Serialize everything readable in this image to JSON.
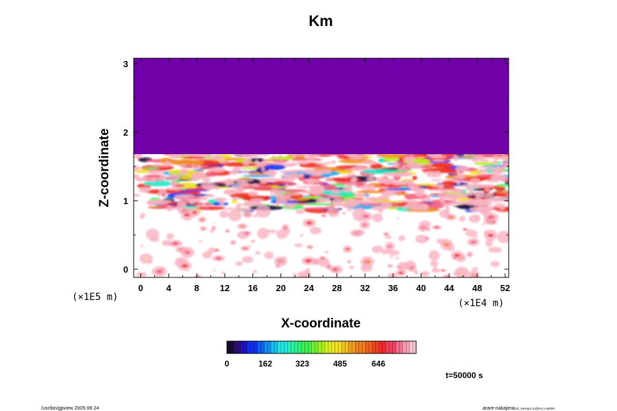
{
  "chart_data": {
    "type": "heatmap",
    "title": "Km",
    "xlabel": "X-coordinate",
    "ylabel": "Z-coordinate",
    "x_multiplier": "(×1E4 m)",
    "y_multiplier": "(×1E5 m)",
    "xlim": [
      -1,
      52.5
    ],
    "ylim": [
      -0.12,
      3.08
    ],
    "x_ticks": [
      "0",
      "4",
      "8",
      "12",
      "16",
      "20",
      "24",
      "28",
      "32",
      "36",
      "40",
      "44",
      "48",
      "52"
    ],
    "y_ticks": [
      "0",
      "1",
      "2",
      "3"
    ],
    "colorbar": {
      "labels": [
        "0",
        "162",
        "323",
        "485",
        "646"
      ],
      "colors": [
        "#1a0a3e",
        "#2a1aa0",
        "#1a3cf0",
        "#1aa8f0",
        "#22e8c8",
        "#40f070",
        "#b8f020",
        "#f0e020",
        "#f09020",
        "#f03020",
        "#f06080",
        "#f8b0c0"
      ]
    },
    "field_features": {
      "uniform_region_top": {
        "z_range": [
          1.68,
          3.08
        ],
        "color": "#7000a8"
      },
      "turbulent_band": {
        "z_range": [
          0.85,
          1.7
        ]
      },
      "sparse_region": {
        "z_range": [
          -0.12,
          0.85
        ]
      }
    },
    "time_label": "t=50000 s"
  },
  "footer": {
    "left": "/usr/bin/gpview 2005-08-24",
    "right_main": "arare-nakajima",
    "right_sub": "CE_Restart.nc@Km,t=50000"
  }
}
